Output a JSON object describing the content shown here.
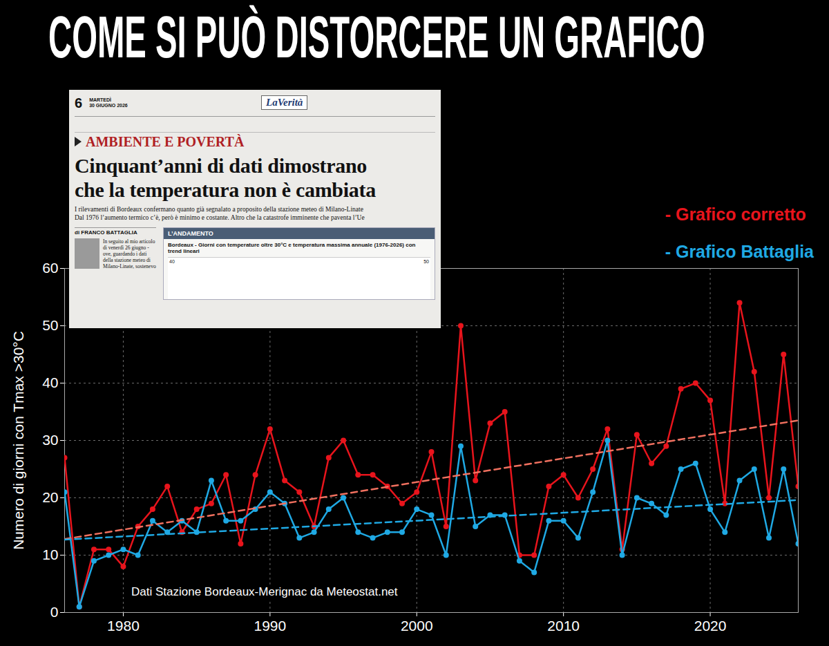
{
  "chart_data": {
    "type": "line",
    "title": "COME SI PUÒ DISTORCERE UN GRAFICO",
    "y_label": "Numero di giorni con Tmax >30°C",
    "caption": "Dati Stazione Bordeaux-Merignac da Meteostat.net",
    "x": [
      1976,
      1977,
      1978,
      1979,
      1980,
      1981,
      1982,
      1983,
      1984,
      1985,
      1986,
      1987,
      1988,
      1989,
      1990,
      1991,
      1992,
      1993,
      1994,
      1995,
      1996,
      1997,
      1998,
      1999,
      2000,
      2001,
      2002,
      2003,
      2004,
      2005,
      2006,
      2007,
      2008,
      2009,
      2010,
      2011,
      2012,
      2013,
      2014,
      2015,
      2016,
      2017,
      2018,
      2019,
      2020,
      2021,
      2022,
      2023,
      2024,
      2025,
      2026
    ],
    "series": [
      {
        "name": "- Grafico corretto",
        "color": "#e8141c",
        "marker": "circle",
        "line_style": "solid",
        "values": [
          27,
          1,
          11,
          11,
          8,
          15,
          18,
          22,
          14,
          18,
          19,
          24,
          12,
          24,
          32,
          23,
          21,
          15,
          27,
          30,
          24,
          24,
          22,
          19,
          21,
          28,
          15,
          50,
          23,
          33,
          35,
          10,
          10,
          22,
          24,
          20,
          25,
          32,
          11,
          31,
          26,
          29,
          39,
          40,
          37,
          19,
          54,
          42,
          20,
          45,
          22
        ],
        "trend": {
          "x": [
            1976,
            2026
          ],
          "values": [
            12.8,
            33.5
          ],
          "color": "#f0705f",
          "line_style": "dashed"
        }
      },
      {
        "name": "- Grafico Battaglia",
        "color": "#1fa9e4",
        "marker": "circle",
        "line_style": "solid",
        "values": [
          21,
          1,
          9,
          10,
          11,
          10,
          16,
          14,
          16,
          14,
          23,
          16,
          16,
          18,
          21,
          19,
          13,
          14,
          18,
          20,
          14,
          13,
          14,
          14,
          18,
          17,
          10,
          29,
          15,
          17,
          17,
          9,
          7,
          16,
          16,
          13,
          21,
          30,
          10,
          20,
          19,
          17,
          25,
          26,
          18,
          14,
          23,
          25,
          13,
          25,
          12
        ],
        "trend": {
          "x": [
            1976,
            2026
          ],
          "values": [
            12.7,
            19.6
          ],
          "color": "#1fa9e4",
          "line_style": "dashed"
        }
      }
    ],
    "xlim": [
      1976,
      2026
    ],
    "xticks": [
      1980,
      1990,
      2000,
      2010,
      2020
    ],
    "ylim": [
      0,
      60
    ],
    "yticks": [
      0,
      10,
      20,
      30,
      40,
      50,
      60
    ],
    "grid": true,
    "legend": "top-right",
    "inset": {
      "page": "6",
      "date": [
        "MARTEDÌ",
        "30 GIUGNO 2026"
      ],
      "masthead": "LaVerità",
      "section": "AMBIENTE E POVERTÀ",
      "headline": [
        "Cinquant’anni di dati dimostrano",
        "che la temperatura non è cambiata"
      ],
      "summary": [
        "I rilevamenti di Bordeaux confermano quanto già segnalato a proposito della stazione meteo di Milano-Linate",
        "Dal 1976 l’aumento termico c’è, però è minimo e costante. Altro che la catastrofe imminente che paventa l’Ue"
      ],
      "byline": "di FRANCO BATTAGLIA",
      "body": "In seguito al mio articolo di venerdì 26 giugno - ove, guardando i dati della stazione meteo di Milano-Linate, sostenevo",
      "box_title": "L’ANDAMENTO",
      "box_caption": "Bordeaux - Giorni con temperature oltre 30°C e temperatura massima annuale (1976-2026) con trend lineari",
      "box_ticks": [
        40,
        50
      ]
    }
  }
}
